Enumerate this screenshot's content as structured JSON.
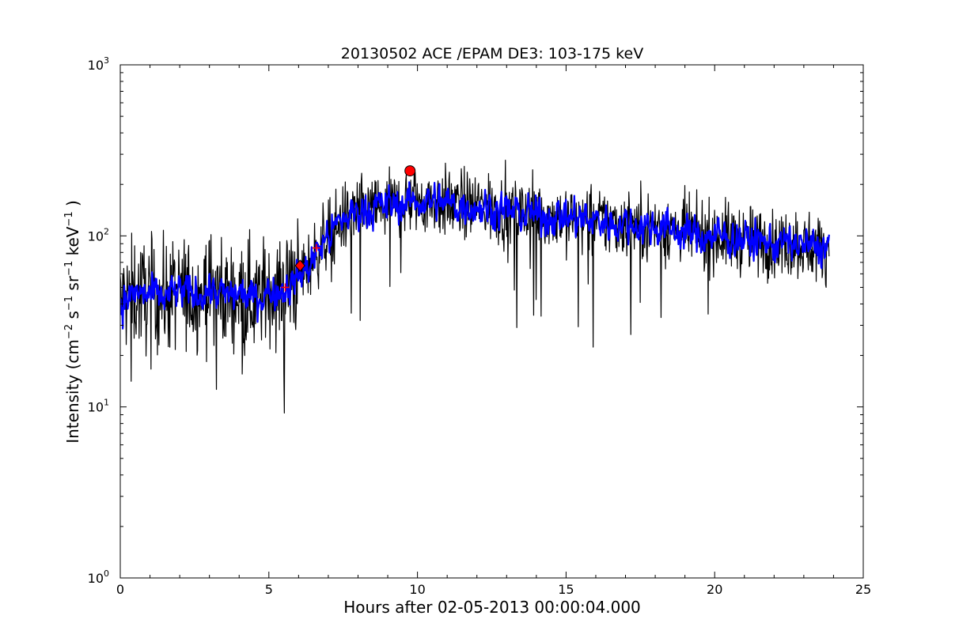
{
  "chart_data": {
    "type": "line",
    "title": "20130502 ACE /EPAM DE3: 103-175 keV",
    "xlabel": "Hours after 02-05-2013 00:00:04.000",
    "ylabel": {
      "prefix": "Intensity (cm",
      "sup1": "−2",
      "mid1": " s",
      "sup2": "−1",
      "mid2": " sr",
      "sup3": "−1",
      "mid3": " keV",
      "sup4": "−1",
      "suffix": " )"
    },
    "x_ticks": [
      0,
      5,
      10,
      15,
      20,
      25
    ],
    "y_ticks": [
      {
        "value": 1,
        "base": "10",
        "exp": "0"
      },
      {
        "value": 10,
        "base": "10",
        "exp": "1"
      },
      {
        "value": 100,
        "base": "10",
        "exp": "2"
      },
      {
        "value": 1000,
        "base": "10",
        "exp": "3"
      }
    ],
    "xlim": [
      0,
      25
    ],
    "ylim": [
      1,
      1000
    ],
    "y_scale": "log",
    "grid": false,
    "series": [
      {
        "style": "raw",
        "color": "#000000",
        "x": [
          0,
          0.5,
          1,
          1.5,
          2,
          2.5,
          3,
          3.5,
          4,
          4.5,
          5,
          5.5,
          6,
          6.3,
          6.6,
          7,
          7.5,
          8,
          8.5,
          9,
          9.5,
          10,
          10.5,
          11,
          11.5,
          12,
          12.5,
          13,
          13.5,
          14,
          14.5,
          15,
          15.5,
          16,
          16.5,
          17,
          17.5,
          18,
          18.5,
          19,
          19.5,
          20,
          20.5,
          21,
          21.5,
          22,
          22.5,
          23,
          23.5,
          23.85
        ],
        "y": [
          40,
          46,
          45,
          44,
          47,
          45,
          49,
          44,
          46,
          43,
          47,
          49,
          58,
          65,
          80,
          100,
          125,
          140,
          145,
          150,
          155,
          160,
          158,
          155,
          150,
          150,
          145,
          140,
          135,
          132,
          130,
          128,
          125,
          122,
          120,
          118,
          115,
          113,
          110,
          105,
          100,
          100,
          98,
          95,
          93,
          90,
          90,
          88,
          85,
          88
        ]
      },
      {
        "style": "smoothed",
        "color": "#0000ff",
        "x": [
          0,
          0.5,
          1,
          1.5,
          2,
          2.5,
          3,
          3.5,
          4,
          4.5,
          5,
          5.5,
          6,
          6.3,
          6.6,
          7,
          7.5,
          8,
          8.5,
          9,
          9.5,
          10,
          10.5,
          11,
          11.5,
          12,
          12.5,
          13,
          13.5,
          14,
          14.5,
          15,
          15.5,
          16,
          16.5,
          17,
          17.5,
          18,
          18.5,
          19,
          19.5,
          20,
          20.5,
          21,
          21.5,
          22,
          22.5,
          23,
          23.5,
          23.85
        ],
        "y": [
          40,
          46,
          45,
          44,
          47,
          45,
          49,
          44,
          46,
          43,
          47,
          49,
          58,
          65,
          80,
          100,
          125,
          140,
          145,
          150,
          155,
          160,
          158,
          155,
          150,
          150,
          145,
          140,
          135,
          132,
          130,
          128,
          125,
          122,
          120,
          118,
          115,
          113,
          110,
          105,
          100,
          100,
          98,
          95,
          93,
          90,
          90,
          88,
          85,
          88
        ]
      }
    ],
    "markers": [
      {
        "shape": "circle",
        "x": 9.75,
        "y": 240,
        "color": "#ff0000"
      },
      {
        "shape": "diamond",
        "x": 6.05,
        "y": 67,
        "color": "#ff0000"
      },
      {
        "shape": "plus",
        "x": 5.55,
        "y": 50,
        "color": "#ff0000"
      },
      {
        "shape": "plus",
        "x": 6.6,
        "y": 85,
        "color": "#ff0000"
      }
    ]
  }
}
